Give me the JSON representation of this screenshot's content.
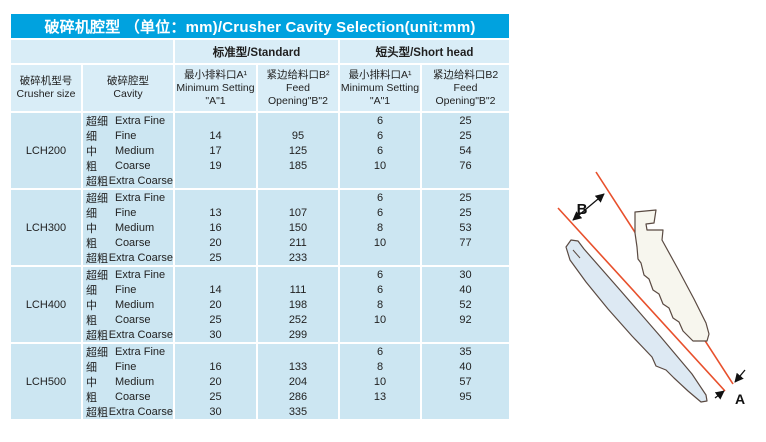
{
  "title": "破碎机腔型 （单位：mm)/Crusher Cavity Selection(unit:mm)",
  "table": {
    "group_headers": {
      "standard": "标准型/Standard",
      "short_head": "短头型/Short head"
    },
    "columns": [
      {
        "zh": "破碎机型号",
        "en": [
          "Crusher size"
        ]
      },
      {
        "zh": "破碎腔型",
        "en": [
          "Cavity"
        ]
      },
      {
        "zh": "最小排料口A¹",
        "en": [
          "Minimum Setting",
          "\"A\"1"
        ]
      },
      {
        "zh": "紧边给料口B²",
        "en": [
          "Feed",
          "Opening\"B\"2"
        ]
      },
      {
        "zh": "最小排料口A¹",
        "en": [
          "Minimum Setting",
          "\"A\"1"
        ]
      },
      {
        "zh": "紧边给料口B2",
        "en": [
          "Feed",
          "Opening\"B\"2"
        ]
      }
    ],
    "groups": [
      {
        "size": "LCH200",
        "rows": [
          {
            "cavity_zh": "超细",
            "cavity_en": "Extra Fine",
            "values": [
              "",
              "",
              "6",
              "25"
            ]
          },
          {
            "cavity_zh": "细",
            "cavity_en": "Fine",
            "values": [
              "14",
              "95",
              "6",
              "25"
            ]
          },
          {
            "cavity_zh": "中",
            "cavity_en": "Medium",
            "values": [
              "17",
              "125",
              "6",
              "54"
            ]
          },
          {
            "cavity_zh": "粗",
            "cavity_en": "Coarse",
            "values": [
              "19",
              "185",
              "10",
              "76"
            ]
          },
          {
            "cavity_zh": "超粗",
            "cavity_en": "Extra Coarse",
            "values": [
              "",
              "",
              "",
              ""
            ]
          }
        ]
      },
      {
        "size": "LCH300",
        "rows": [
          {
            "cavity_zh": "超细",
            "cavity_en": "Extra Fine",
            "values": [
              "",
              "",
              "6",
              "25"
            ]
          },
          {
            "cavity_zh": "细",
            "cavity_en": "Fine",
            "values": [
              "13",
              "107",
              "6",
              "25"
            ]
          },
          {
            "cavity_zh": "中",
            "cavity_en": "Medium",
            "values": [
              "16",
              "150",
              "8",
              "53"
            ]
          },
          {
            "cavity_zh": "粗",
            "cavity_en": "Coarse",
            "values": [
              "20",
              "211",
              "10",
              "77"
            ]
          },
          {
            "cavity_zh": "超粗",
            "cavity_en": "Extra Coarse",
            "values": [
              "25",
              "233",
              "",
              ""
            ]
          }
        ]
      },
      {
        "size": "LCH400",
        "rows": [
          {
            "cavity_zh": "超细",
            "cavity_en": "Extra Fine",
            "values": [
              "",
              "",
              "6",
              "30"
            ]
          },
          {
            "cavity_zh": "细",
            "cavity_en": "Fine",
            "values": [
              "14",
              "111",
              "6",
              "40"
            ]
          },
          {
            "cavity_zh": "中",
            "cavity_en": "Medium",
            "values": [
              "20",
              "198",
              "8",
              "52"
            ]
          },
          {
            "cavity_zh": "粗",
            "cavity_en": "Coarse",
            "values": [
              "25",
              "252",
              "10",
              "92"
            ]
          },
          {
            "cavity_zh": "超粗",
            "cavity_en": "Extra Coarse",
            "values": [
              "30",
              "299",
              "",
              ""
            ]
          }
        ]
      },
      {
        "size": "LCH500",
        "rows": [
          {
            "cavity_zh": "超细",
            "cavity_en": "Extra Fine",
            "values": [
              "",
              "",
              "6",
              "35"
            ]
          },
          {
            "cavity_zh": "细",
            "cavity_en": "Fine",
            "values": [
              "16",
              "133",
              "8",
              "40"
            ]
          },
          {
            "cavity_zh": "中",
            "cavity_en": "Medium",
            "values": [
              "20",
              "204",
              "10",
              "57"
            ]
          },
          {
            "cavity_zh": "粗",
            "cavity_en": "Coarse",
            "values": [
              "25",
              "286",
              "13",
              "95"
            ]
          },
          {
            "cavity_zh": "超粗",
            "cavity_en": "Extra Coarse",
            "values": [
              "30",
              "335",
              "",
              ""
            ]
          }
        ]
      }
    ]
  },
  "diagram": {
    "label_a": "A",
    "label_b": "B"
  },
  "colors": {
    "title_bar": "#00a2df",
    "header_bg": "#d9edf7",
    "cell_bg": "#cce6f2",
    "red_line": "#e8502c",
    "shape_outline": "#5a4a42",
    "mantle_fill": "#dde9f3",
    "liner_fill": "#f7f6ee",
    "text": "#222222"
  }
}
